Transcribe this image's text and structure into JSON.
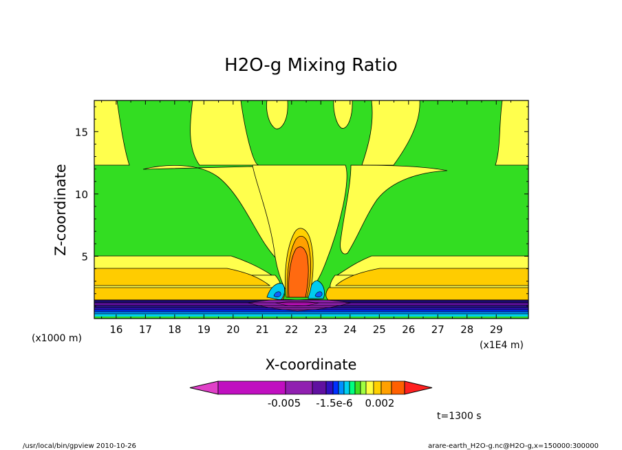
{
  "chart_data": {
    "type": "contour",
    "title": "H2O-g Mixing Ratio",
    "xlabel": "X-coordinate",
    "ylabel": "Z-coordinate",
    "x_scale_label": "(x1E4 m)",
    "y_scale_label": "(x1000 m)",
    "xlim": [
      15.25,
      30.1
    ],
    "ylim": [
      0,
      17.5
    ],
    "x_ticks": [
      "16",
      "17",
      "18",
      "19",
      "20",
      "21",
      "22",
      "23",
      "24",
      "25",
      "26",
      "27",
      "28",
      "29"
    ],
    "y_ticks": [
      "5",
      "10",
      "15"
    ],
    "colorbar": {
      "colors": [
        "#e040c8",
        "#c010c0",
        "#9020b0",
        "#6010a0",
        "#3010c0",
        "#0030ff",
        "#0090ff",
        "#00d0f0",
        "#00ff80",
        "#40e020",
        "#a0ff40",
        "#ffff40",
        "#ffd000",
        "#ffa000",
        "#ff6000",
        "#ff2020"
      ],
      "labels": [
        "-0.005",
        "-1.5e-6",
        "0.002"
      ]
    },
    "time_label": "t=1300 s"
  },
  "footer": {
    "left": "/usr/local/bin/gpview  2010-10-26",
    "right": "arare-earth_H2O-g.nc@H2O-g,x=150000:300000"
  }
}
